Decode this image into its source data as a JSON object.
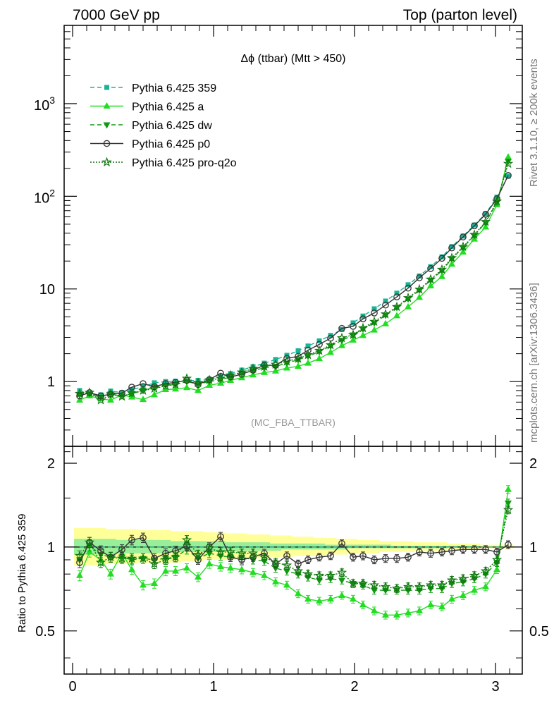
{
  "header": {
    "left": "7000 GeV pp",
    "right": "Top (parton level)"
  },
  "side": {
    "rivet": "Rivet 3.1.10, ≥ 200k events",
    "mcplots": "mcplots.cern.ch [arXiv:1306.3436]"
  },
  "chart_data": {
    "type": "line",
    "title": "Δϕ (ttbar) (Mtt > 450)",
    "watermark": "(MC_FBA_TTBAR)",
    "ylabel_ratio": "Ratio to Pythia 6.425 359",
    "x": [
      0.05,
      0.12,
      0.2,
      0.27,
      0.35,
      0.42,
      0.5,
      0.58,
      0.66,
      0.73,
      0.81,
      0.89,
      0.97,
      1.05,
      1.12,
      1.2,
      1.28,
      1.36,
      1.44,
      1.52,
      1.6,
      1.67,
      1.75,
      1.83,
      1.91,
      1.99,
      2.06,
      2.14,
      2.22,
      2.3,
      2.38,
      2.46,
      2.54,
      2.62,
      2.69,
      2.77,
      2.85,
      2.93,
      3.01,
      3.09
    ],
    "xticks": [
      "0",
      "1",
      "2",
      "3"
    ],
    "main": {
      "scale": "log",
      "ylim": [
        0.2,
        7000
      ],
      "yticks": [
        "1",
        "10",
        "10^2",
        "10^3"
      ]
    },
    "ratio": {
      "ylim": [
        0.35,
        2.3
      ],
      "yticks": [
        "0.5",
        "1",
        "2"
      ]
    },
    "series": [
      {
        "name": "Pythia 6.425 359",
        "color": "#1ab394",
        "marker": "square",
        "dash": "6,4",
        "values": [
          0.8,
          0.73,
          0.72,
          0.79,
          0.76,
          0.82,
          0.88,
          0.97,
          1.0,
          1.01,
          1.02,
          1.03,
          1.05,
          1.13,
          1.22,
          1.33,
          1.45,
          1.58,
          1.73,
          1.92,
          2.15,
          2.42,
          2.75,
          3.15,
          3.65,
          4.3,
          5.1,
          6.1,
          7.4,
          9.0,
          11.1,
          13.8,
          17.4,
          22.2,
          28.6,
          37.2,
          49,
          65,
          98,
          165
        ],
        "ratio": [
          1,
          1,
          1,
          1,
          1,
          1,
          1,
          1,
          1,
          1,
          1,
          1,
          1,
          1,
          1,
          1,
          1,
          1,
          1,
          1,
          1,
          1,
          1,
          1,
          1,
          1,
          1,
          1,
          1,
          1,
          1,
          1,
          1,
          1,
          1,
          1,
          1,
          1,
          1,
          1
        ]
      },
      {
        "name": "Pythia 6.425 a",
        "color": "#22dd22",
        "marker": "triangle",
        "dash": "",
        "values": [
          0.63,
          0.7,
          0.65,
          0.63,
          0.72,
          0.68,
          0.64,
          0.72,
          0.82,
          0.83,
          0.86,
          0.8,
          0.91,
          0.96,
          1.03,
          1.1,
          1.18,
          1.25,
          1.3,
          1.4,
          1.46,
          1.58,
          1.77,
          2.06,
          2.44,
          2.8,
          3.14,
          3.6,
          4.2,
          5.13,
          6.4,
          8.1,
          10.8,
          13.6,
          18.5,
          25,
          34.5,
          46.6,
          81,
          265
        ],
        "ratio": [
          0.79,
          0.96,
          0.9,
          0.8,
          0.95,
          0.83,
          0.73,
          0.74,
          0.82,
          0.82,
          0.84,
          0.78,
          0.87,
          0.85,
          0.84,
          0.83,
          0.81,
          0.79,
          0.75,
          0.73,
          0.68,
          0.65,
          0.64,
          0.65,
          0.67,
          0.65,
          0.62,
          0.59,
          0.57,
          0.57,
          0.58,
          0.59,
          0.62,
          0.61,
          0.65,
          0.67,
          0.7,
          0.72,
          0.83,
          1.61
        ]
      },
      {
        "name": "Pythia 6.425 dw",
        "color": "#119911",
        "marker": "triangledown",
        "dash": "6,4",
        "values": [
          0.72,
          0.74,
          0.68,
          0.73,
          0.7,
          0.74,
          0.8,
          0.87,
          0.91,
          0.93,
          1.0,
          0.94,
          1.0,
          1.05,
          1.12,
          1.22,
          1.31,
          1.41,
          1.46,
          1.58,
          1.72,
          1.88,
          2.1,
          2.42,
          2.78,
          3.18,
          3.7,
          4.3,
          5.2,
          6.3,
          7.8,
          9.7,
          12.4,
          15.7,
          21.2,
          28,
          37.8,
          52,
          86,
          238
        ],
        "ratio": [
          0.9,
          1.01,
          0.94,
          0.92,
          0.92,
          0.9,
          0.91,
          0.9,
          0.91,
          0.92,
          0.98,
          0.91,
          0.95,
          0.93,
          0.92,
          0.92,
          0.9,
          0.89,
          0.84,
          0.82,
          0.8,
          0.78,
          0.76,
          0.77,
          0.76,
          0.74,
          0.73,
          0.7,
          0.7,
          0.7,
          0.7,
          0.7,
          0.71,
          0.71,
          0.74,
          0.75,
          0.77,
          0.8,
          0.88,
          1.44
        ]
      },
      {
        "name": "Pythia 6.425 p0",
        "color": "#333333",
        "marker": "circle",
        "dash": "",
        "values": [
          0.7,
          0.76,
          0.7,
          0.73,
          0.75,
          0.87,
          0.95,
          0.88,
          0.95,
          0.98,
          1.03,
          0.93,
          1.05,
          1.23,
          1.12,
          1.2,
          1.33,
          1.5,
          1.5,
          1.78,
          1.87,
          2.18,
          2.52,
          2.94,
          3.75,
          3.95,
          4.75,
          5.5,
          6.7,
          8.2,
          10.2,
          13.2,
          16.6,
          21.4,
          27.7,
          36.4,
          48,
          64,
          94,
          168
        ],
        "ratio": [
          0.88,
          1.04,
          0.97,
          0.92,
          0.98,
          1.06,
          1.08,
          0.91,
          0.95,
          0.97,
          1.01,
          0.9,
          1.0,
          1.09,
          0.92,
          0.9,
          0.92,
          0.95,
          0.87,
          0.93,
          0.87,
          0.9,
          0.92,
          0.93,
          1.03,
          0.92,
          0.93,
          0.9,
          0.91,
          0.91,
          0.92,
          0.96,
          0.95,
          0.96,
          0.97,
          0.98,
          0.98,
          0.98,
          0.96,
          1.02
        ]
      },
      {
        "name": "Pythia 6.425 pro-q2o",
        "color": "#117711",
        "marker": "star",
        "dash": "2,2",
        "values": [
          0.74,
          0.76,
          0.63,
          0.73,
          0.69,
          0.75,
          0.8,
          0.84,
          0.9,
          0.93,
          1.08,
          0.97,
          1.04,
          1.08,
          1.17,
          1.26,
          1.38,
          1.45,
          1.53,
          1.65,
          1.77,
          1.94,
          2.16,
          2.48,
          2.95,
          3.2,
          3.78,
          4.44,
          5.34,
          6.4,
          8.0,
          9.9,
          12.7,
          16.2,
          21.6,
          28.5,
          38.5,
          53,
          88,
          225
        ],
        "ratio": [
          0.93,
          1.04,
          0.88,
          0.92,
          0.91,
          0.91,
          0.91,
          0.87,
          0.9,
          0.92,
          1.06,
          0.94,
          0.99,
          0.96,
          0.96,
          0.95,
          0.95,
          0.92,
          0.88,
          0.86,
          0.82,
          0.8,
          0.79,
          0.79,
          0.81,
          0.74,
          0.74,
          0.73,
          0.72,
          0.71,
          0.72,
          0.72,
          0.73,
          0.73,
          0.76,
          0.77,
          0.79,
          0.82,
          0.9,
          1.36
        ]
      }
    ],
    "bands": {
      "yellow_lo": [
        0.86,
        0.86,
        0.86,
        0.87,
        0.87,
        0.87,
        0.88,
        0.88,
        0.88,
        0.88,
        0.89,
        0.89,
        0.9,
        0.9,
        0.9,
        0.91,
        0.91,
        0.91,
        0.92,
        0.92,
        0.93,
        0.93,
        0.93,
        0.94,
        0.94,
        0.95,
        0.95,
        0.95,
        0.96,
        0.96,
        0.96,
        0.97,
        0.97,
        0.97,
        0.98,
        0.98,
        0.98,
        0.99,
        0.99,
        0.99
      ],
      "yellow_hi": [
        1.17,
        1.17,
        1.17,
        1.16,
        1.16,
        1.16,
        1.15,
        1.15,
        1.15,
        1.14,
        1.14,
        1.14,
        1.13,
        1.13,
        1.12,
        1.12,
        1.11,
        1.11,
        1.1,
        1.1,
        1.09,
        1.09,
        1.08,
        1.08,
        1.07,
        1.07,
        1.06,
        1.06,
        1.05,
        1.05,
        1.05,
        1.04,
        1.04,
        1.04,
        1.03,
        1.03,
        1.03,
        1.02,
        1.02,
        1.02
      ],
      "green_lo": [
        0.94,
        0.94,
        0.94,
        0.94,
        0.95,
        0.95,
        0.95,
        0.95,
        0.95,
        0.96,
        0.96,
        0.96,
        0.96,
        0.96,
        0.97,
        0.97,
        0.97,
        0.97,
        0.97,
        0.98,
        0.98,
        0.98,
        0.98,
        0.98,
        0.98,
        0.99,
        0.99,
        0.99,
        0.99,
        0.99,
        0.99,
        0.99,
        0.99,
        0.99,
        1.0,
        1.0,
        1.0,
        1.0,
        1.0,
        1.0
      ],
      "green_hi": [
        1.07,
        1.07,
        1.07,
        1.07,
        1.06,
        1.06,
        1.06,
        1.06,
        1.06,
        1.05,
        1.05,
        1.05,
        1.05,
        1.05,
        1.04,
        1.04,
        1.04,
        1.04,
        1.03,
        1.03,
        1.03,
        1.03,
        1.03,
        1.02,
        1.02,
        1.02,
        1.02,
        1.02,
        1.02,
        1.01,
        1.01,
        1.01,
        1.01,
        1.01,
        1.01,
        1.01,
        1.01,
        1.0,
        1.0,
        1.0
      ]
    }
  }
}
